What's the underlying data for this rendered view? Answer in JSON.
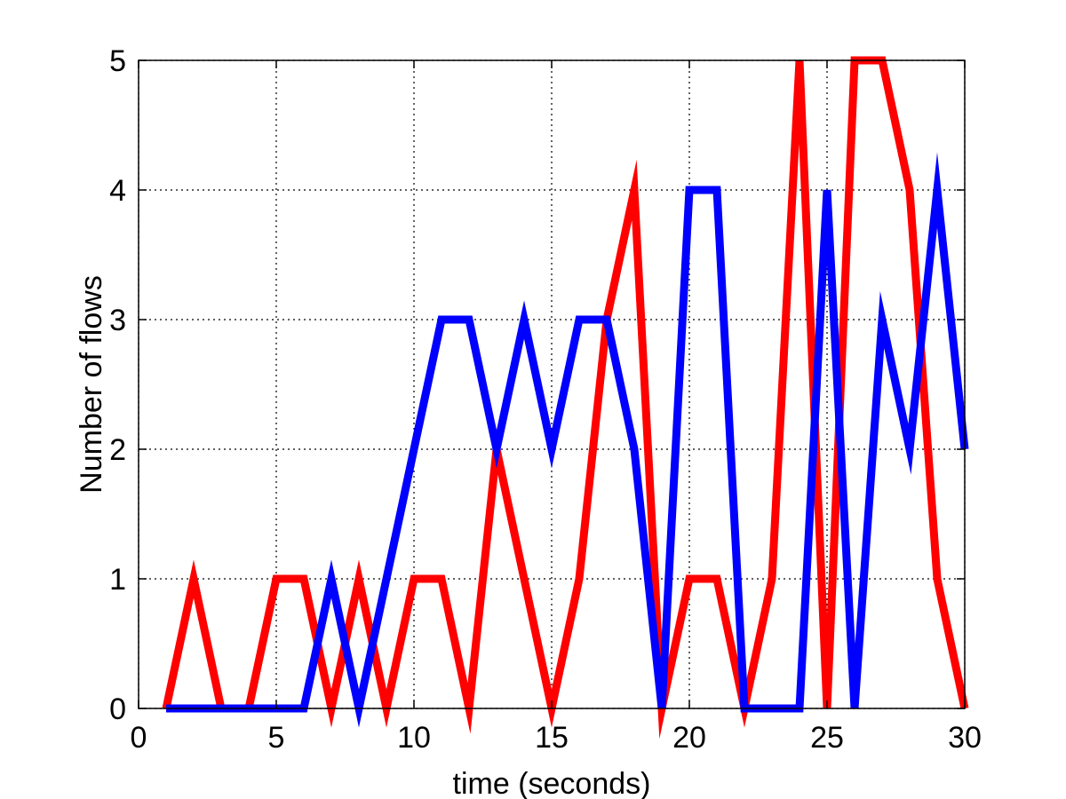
{
  "chart_data": {
    "type": "line",
    "title": "",
    "xlabel": "time (seconds)",
    "ylabel": "Number of flows",
    "xlim": [
      0,
      30
    ],
    "ylim": [
      0,
      5
    ],
    "xticks": [
      0,
      5,
      10,
      15,
      20,
      25,
      30
    ],
    "yticks": [
      0,
      1,
      2,
      3,
      4,
      5
    ],
    "xtick_labels": [
      "0",
      "5",
      "10",
      "15",
      "20",
      "25",
      "30"
    ],
    "ytick_labels": [
      "0",
      "1",
      "2",
      "3",
      "4",
      "5"
    ],
    "grid": true,
    "legend": "none",
    "x": [
      1,
      2,
      3,
      4,
      5,
      6,
      7,
      8,
      9,
      10,
      11,
      12,
      13,
      14,
      15,
      16,
      17,
      18,
      19,
      20,
      21,
      22,
      23,
      24,
      25,
      26,
      27,
      28,
      29,
      30
    ],
    "series": [
      {
        "color": "#ff0000",
        "values": [
          0,
          1,
          0,
          0,
          1,
          1,
          0,
          1,
          0,
          1,
          1,
          0,
          2,
          1,
          0,
          1,
          3,
          4,
          0,
          1,
          1,
          0,
          1,
          5,
          0,
          5,
          5,
          4,
          1,
          0
        ]
      },
      {
        "color": "#0000ff",
        "values": [
          0,
          0,
          0,
          0,
          0,
          0,
          1,
          0,
          1,
          2,
          3,
          3,
          2,
          3,
          2,
          3,
          3,
          2,
          0,
          4,
          4,
          0,
          0,
          0,
          4,
          0,
          3,
          2,
          4,
          2
        ]
      }
    ]
  }
}
